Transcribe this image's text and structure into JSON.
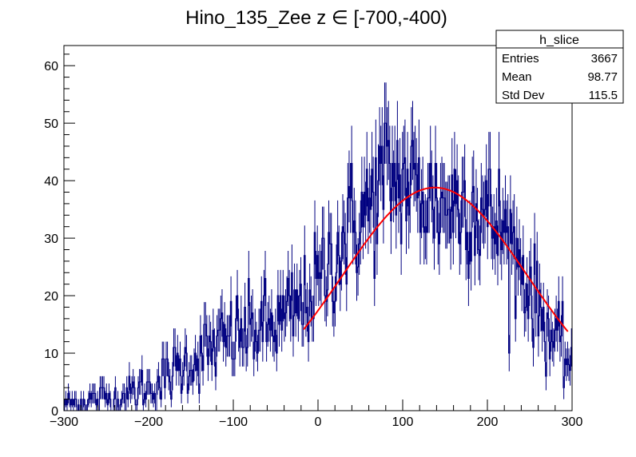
{
  "chart_data": {
    "type": "histogram",
    "title": "Hino_135_Zee z  ∈ [-700,-400)",
    "xlabel": "",
    "ylabel": "",
    "xlim": [
      -300,
      300
    ],
    "ylim": [
      0,
      63.5
    ],
    "xticks": [
      -300,
      -200,
      -100,
      0,
      100,
      200,
      300
    ],
    "xtick_labels": [
      "−300",
      "−200",
      "−100",
      "0",
      "100",
      "200",
      "300"
    ],
    "yticks": [
      0,
      10,
      20,
      30,
      40,
      50,
      60
    ],
    "ytick_labels": [
      "0",
      "10",
      "20",
      "30",
      "40",
      "50",
      "60"
    ],
    "grid": false,
    "legend": "none",
    "bin_width": 1.5,
    "bin_start": -300,
    "histogram_color": "#000080",
    "fit_color": "#ff0000",
    "series": [
      {
        "type": "histogram-profile",
        "description_points_x": [
          -300,
          -280,
          -260,
          -240,
          -220,
          -200,
          -180,
          -160,
          -140,
          -120,
          -100,
          -80,
          -60,
          -40,
          -20,
          0,
          20,
          40,
          60,
          80,
          100,
          120,
          140,
          160,
          180,
          200,
          220,
          240,
          260,
          280,
          296
        ],
        "description_points_y": [
          1,
          1.5,
          2,
          2.5,
          3,
          4,
          5.5,
          8,
          9.5,
          11,
          13,
          14,
          14.5,
          16,
          18,
          22,
          27,
          32,
          35,
          41,
          40,
          38,
          36,
          36,
          36,
          34,
          31,
          25,
          18,
          12,
          9
        ]
      },
      {
        "type": "fit-curve",
        "function": "gaussian",
        "x_range": [
          -17,
          296
        ],
        "peak_x": 138,
        "amplitude": 38.8,
        "sigma": 109
      }
    ]
  },
  "stats_box": {
    "name": "h_slice",
    "rows": [
      {
        "label": "Entries",
        "value": "3667"
      },
      {
        "label": "Mean",
        "value": "98.77"
      },
      {
        "label": "Std Dev",
        "value": "115.5"
      }
    ]
  }
}
